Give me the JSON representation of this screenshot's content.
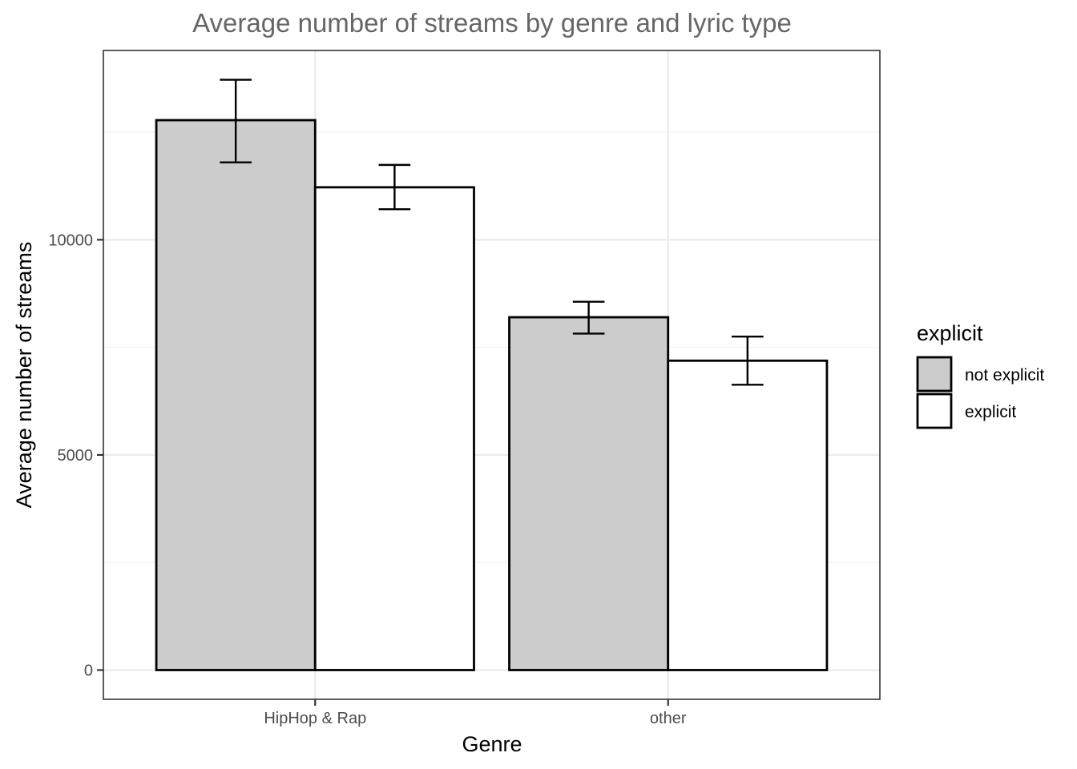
{
  "chart_data": {
    "type": "bar",
    "title": "Average number of streams by genre and lyric type",
    "xlabel": "Genre",
    "ylabel": "Average number of streams",
    "categories": [
      "HipHop & Rap",
      "other"
    ],
    "series": [
      {
        "name": "not explicit",
        "color": "#cccccc",
        "values": [
          12780,
          8200
        ],
        "error_low": [
          11800,
          7820
        ],
        "error_high": [
          13720,
          8560
        ]
      },
      {
        "name": "explicit",
        "color": "#ffffff",
        "values": [
          11220,
          7190
        ],
        "error_low": [
          10710,
          6630
        ],
        "error_high": [
          11740,
          7750
        ]
      }
    ],
    "yticks": [
      0,
      5000,
      10000
    ],
    "ytick_labels": [
      "0",
      "5000",
      "10000"
    ],
    "ylim": [
      -680,
      14400
    ],
    "grid": true,
    "legend": {
      "title": "explicit",
      "position": "right"
    }
  }
}
